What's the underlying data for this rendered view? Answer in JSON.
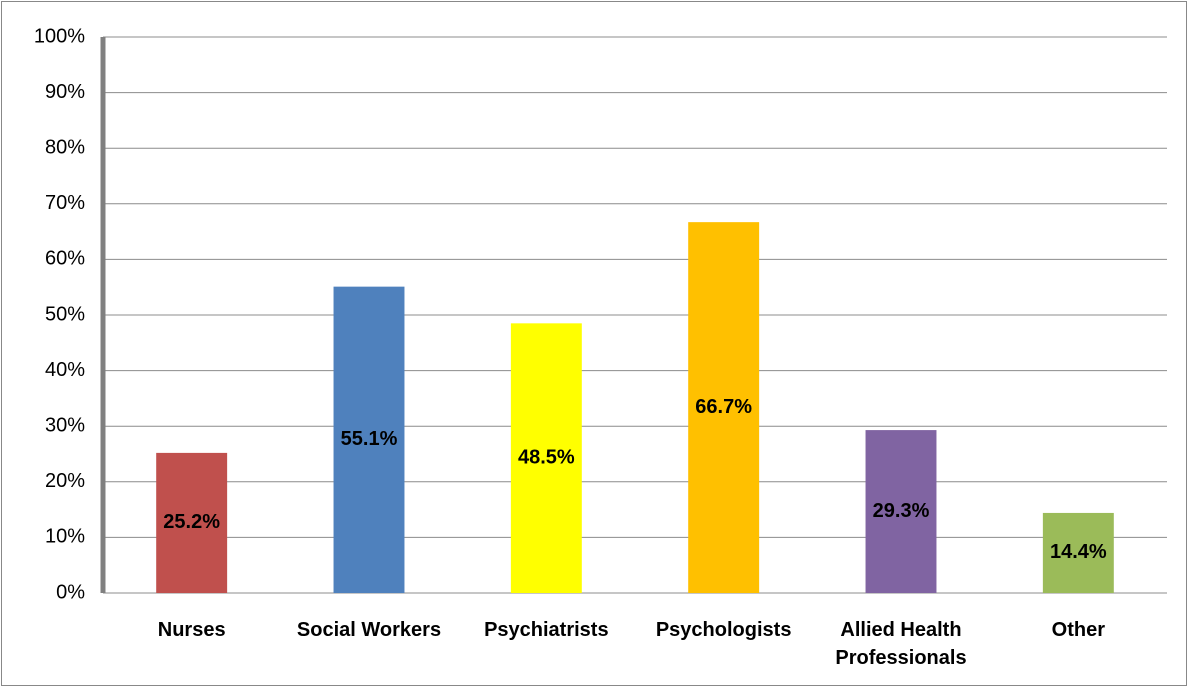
{
  "chart_data": {
    "type": "bar",
    "categories": [
      "Nurses",
      "Social Workers",
      "Psychiatrists",
      "Psychologists",
      "Allied Health Professionals",
      "Other"
    ],
    "values": [
      25.2,
      55.1,
      48.5,
      66.7,
      29.3,
      14.4
    ],
    "value_labels": [
      "25.2%",
      "55.1%",
      "48.5%",
      "66.7%",
      "29.3%",
      "14.4%"
    ],
    "colors": [
      "#c0504d",
      "#4f81bd",
      "#ffff00",
      "#ffc000",
      "#8064a2",
      "#9bbb59"
    ],
    "ylim": [
      0,
      100
    ],
    "yticks": [
      {
        "value": 0,
        "label": "0%"
      },
      {
        "value": 10,
        "label": "10%"
      },
      {
        "value": 20,
        "label": "20%"
      },
      {
        "value": 30,
        "label": "30%"
      },
      {
        "value": 40,
        "label": "40%"
      },
      {
        "value": 50,
        "label": "50%"
      },
      {
        "value": 60,
        "label": "60%"
      },
      {
        "value": 70,
        "label": "70%"
      },
      {
        "value": 80,
        "label": "80%"
      },
      {
        "value": 90,
        "label": "90%"
      },
      {
        "value": 100,
        "label": "100%"
      }
    ],
    "grid": true
  }
}
